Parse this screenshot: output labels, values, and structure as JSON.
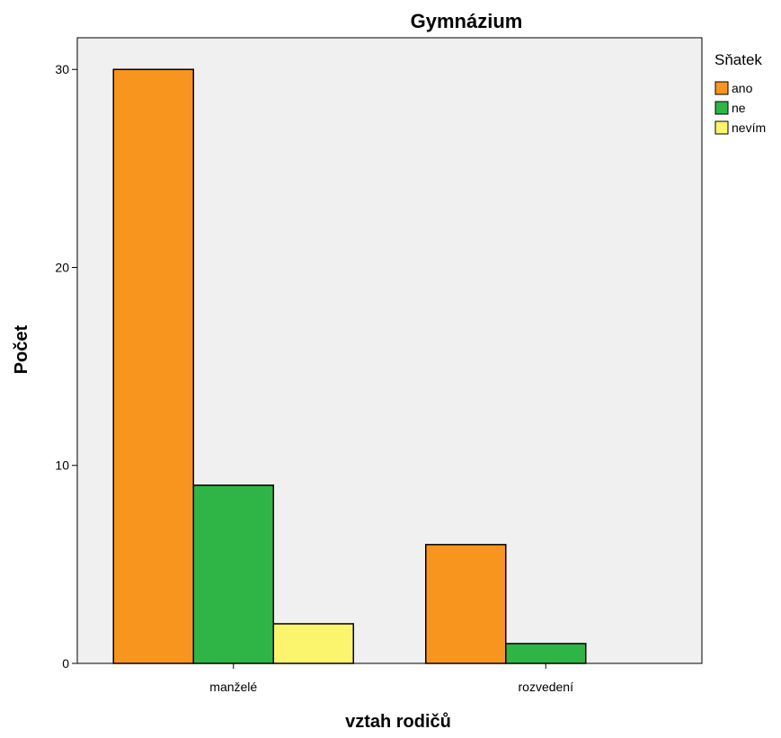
{
  "chart_data": {
    "type": "bar",
    "title": "Gymnázium",
    "xlabel": "vztah rodičů",
    "ylabel": "Počet",
    "categories": [
      "manželé",
      "rozvedení"
    ],
    "series": [
      {
        "name": "ano",
        "color": "#f7951e",
        "values": [
          30,
          6
        ]
      },
      {
        "name": "ne",
        "color": "#2fb545",
        "values": [
          9,
          1
        ]
      },
      {
        "name": "nevím",
        "color": "#fbf46d",
        "values": [
          2,
          0
        ]
      }
    ],
    "ylim": [
      0,
      31.6
    ],
    "yticks": [
      0,
      10,
      20,
      30
    ],
    "legend": {
      "title": "Sňatek",
      "placement": "right-top"
    },
    "grid": false,
    "plot_background": "#f0f0f0",
    "bar_outline": "#000000"
  }
}
